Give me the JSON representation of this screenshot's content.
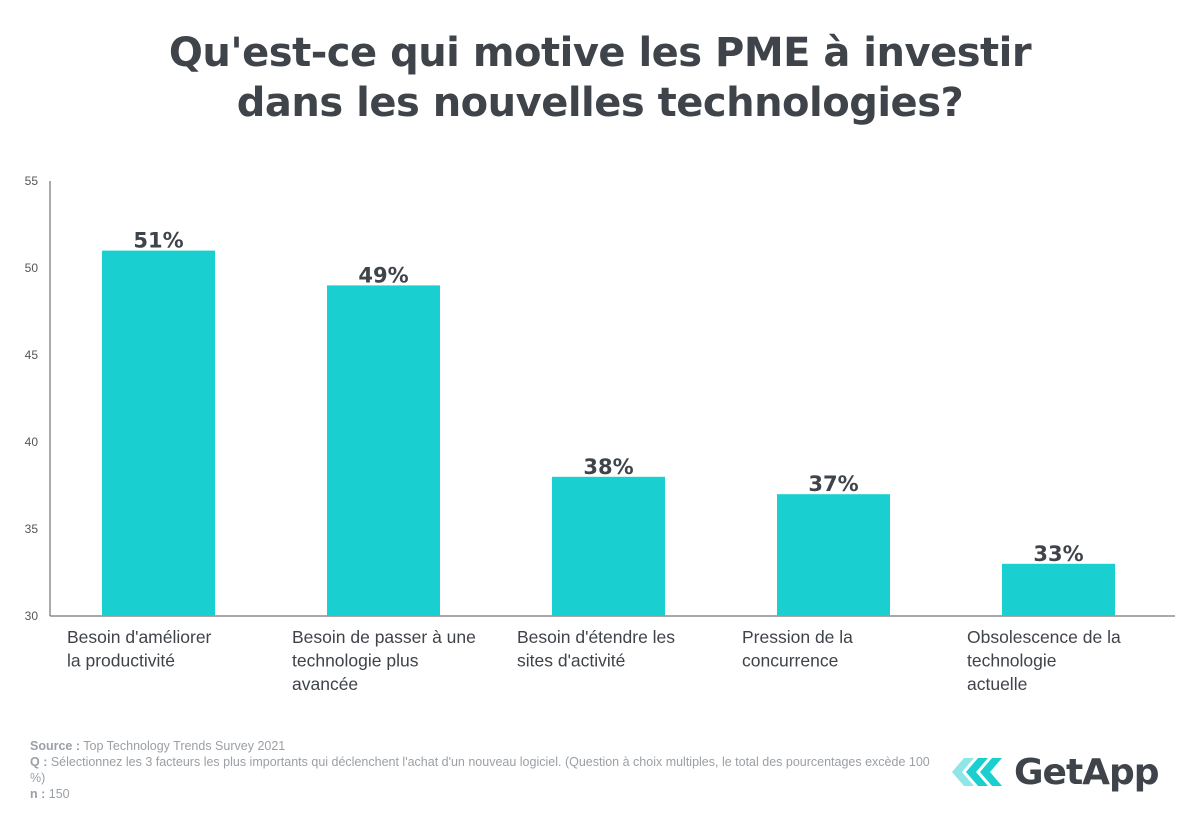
{
  "title": {
    "line1": "Qu'est-ce qui motive les PME à investir",
    "line2": "dans les nouvelles technologies?"
  },
  "chart_data": {
    "type": "bar",
    "title": "Qu'est-ce qui motive les PME à investir dans les nouvelles technologies?",
    "categories": [
      [
        "Besoin d'améliorer",
        "la productivité"
      ],
      [
        "Besoin de passer à une",
        "technologie plus",
        "avancée"
      ],
      [
        "Besoin d'étendre les",
        "sites d'activité"
      ],
      [
        "Pression de la",
        "concurrence"
      ],
      [
        "Obsolescence de la",
        "technologie",
        "actuelle"
      ]
    ],
    "values": [
      51,
      49,
      38,
      37,
      33
    ],
    "data_labels": [
      "51%",
      "49%",
      "38%",
      "37%",
      "33%"
    ],
    "yticks": [
      30,
      35,
      40,
      45,
      50,
      55
    ],
    "ylim": [
      30,
      55
    ],
    "xlabel": "",
    "ylabel": "",
    "bar_color": "#1acfd0",
    "grid": false
  },
  "footer": {
    "source_label": "Source :",
    "source_text": " Top Technology Trends Survey 2021",
    "q_label": "Q :",
    "q_text": " Sélectionnez les 3 facteurs les plus importants qui déclenchent l'achat d'un nouveau logiciel. (Question à choix multiples, le total des pourcentages excède 100 %)",
    "n_label": "n :",
    "n_text": " 150"
  },
  "logo": {
    "text": "GetApp",
    "icon": "getapp-chevron-icon",
    "color_light": "#8ee6e7",
    "color_dark": "#1acfd0"
  }
}
